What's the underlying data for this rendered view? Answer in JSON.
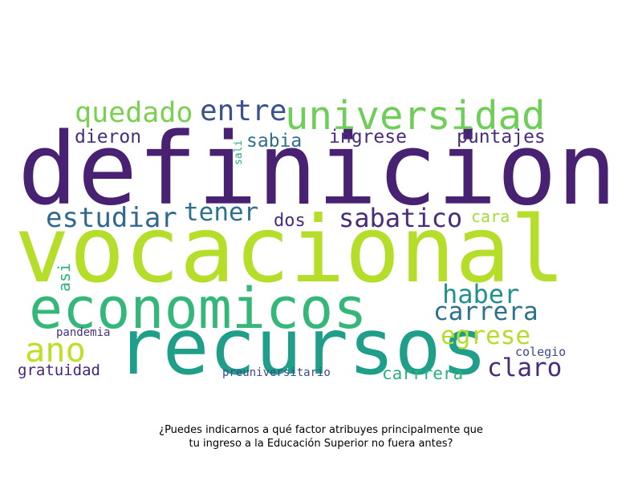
{
  "cloud": {
    "words": [
      {
        "text": "definicion",
        "color": "#482173"
      },
      {
        "text": "vocacional",
        "color": "#b5de2b"
      },
      {
        "text": "recursos",
        "color": "#1f9e89"
      },
      {
        "text": "economicos",
        "color": "#35b779"
      },
      {
        "text": "universidad",
        "color": "#6ece58"
      },
      {
        "text": "quedado",
        "color": "#7ad151"
      },
      {
        "text": "entre",
        "color": "#3b528b"
      },
      {
        "text": "estudiar",
        "color": "#31688e"
      },
      {
        "text": "tener",
        "color": "#2c728e"
      },
      {
        "text": "sabatico",
        "color": "#472d7b"
      },
      {
        "text": "haber",
        "color": "#21918c"
      },
      {
        "text": "carrera",
        "color": "#2c728e"
      },
      {
        "text": "egrese",
        "color": "#b5de2b"
      },
      {
        "text": "ano",
        "color": "#bddf26"
      },
      {
        "text": "claro",
        "color": "#472c7a"
      },
      {
        "text": "dieron",
        "color": "#472d7b"
      },
      {
        "text": "sabia",
        "color": "#2e6e8e"
      },
      {
        "text": "ingrese",
        "color": "#472c7a"
      },
      {
        "text": "puntajes",
        "color": "#472d7b"
      },
      {
        "text": "dos",
        "color": "#472d7b"
      },
      {
        "text": "cara",
        "color": "#a5db36"
      },
      {
        "text": "carrrera",
        "color": "#2ab07f"
      },
      {
        "text": "gratuidad",
        "color": "#482475"
      },
      {
        "text": "pandemia",
        "color": "#46327e"
      },
      {
        "text": "colegio",
        "color": "#3e4989"
      },
      {
        "text": "preuniversitario",
        "color": "#3e4a89"
      },
      {
        "text": "asi",
        "color": "#2eb37c"
      },
      {
        "text": "sali",
        "color": "#25ab82"
      }
    ]
  },
  "caption": {
    "line1": "¿Puedes indicarnos a qué factor atribuyes principalmente que",
    "line2": "tu ingreso a la Educación Superior no fuera antes?"
  }
}
